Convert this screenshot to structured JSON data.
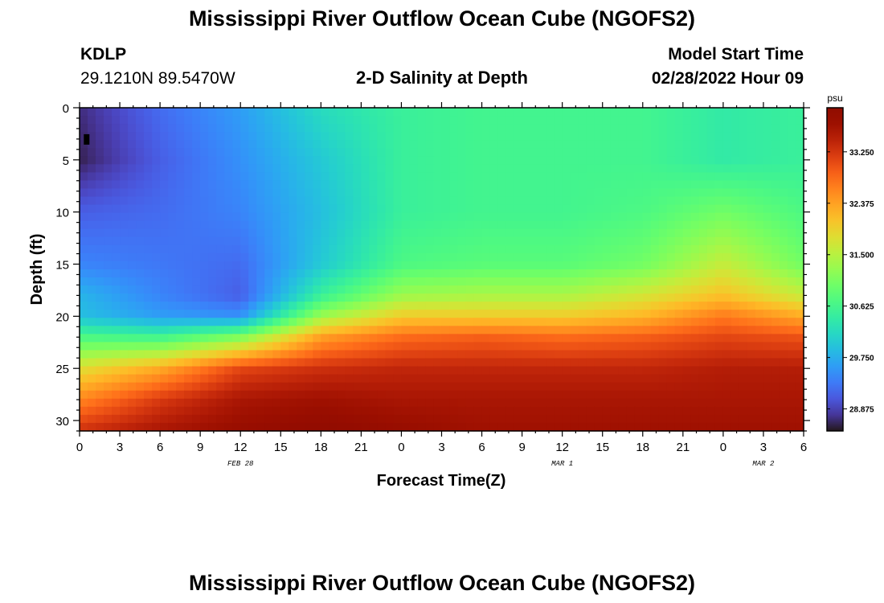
{
  "page": {
    "title": "Mississippi River Outflow Ocean Cube (NGOFS2)",
    "footer_title": "Mississippi River Outflow Ocean Cube (NGOFS2)",
    "station": "KDLP",
    "coordinates": "29.1210N  89.5470W",
    "plot_title": "2-D Salinity at Depth",
    "model_start_label": "Model Start Time",
    "model_start_value": "02/28/2022 Hour 09"
  },
  "chart_data": {
    "type": "heatmap",
    "title": "2-D Salinity at Depth",
    "xlabel": "Forecast Time(Z)",
    "ylabel": "Depth (ft)",
    "x_tick_labels": [
      "0",
      "3",
      "6",
      "9",
      "12",
      "15",
      "18",
      "21",
      "0",
      "3",
      "6",
      "9",
      "12",
      "15",
      "18",
      "21",
      "0",
      "3",
      "6"
    ],
    "x_hours": [
      0,
      3,
      6,
      9,
      12,
      15,
      18,
      21,
      24,
      27,
      30,
      33,
      36,
      39,
      42,
      45,
      48,
      51,
      54
    ],
    "x_range_hours": [
      0,
      54
    ],
    "date_labels": [
      {
        "label": "FEB 28",
        "hour": 12
      },
      {
        "label": "MAR 1",
        "hour": 36
      },
      {
        "label": "MAR 2",
        "hour": 51
      }
    ],
    "y_ticks": [
      0,
      5,
      10,
      15,
      20,
      25,
      30
    ],
    "y_range": [
      0,
      31
    ],
    "y_inverted": true,
    "colorbar": {
      "units": "psu",
      "ticks": [
        33.25,
        32.375,
        31.5,
        30.625,
        29.75,
        28.875
      ],
      "tick_labels": [
        "33.250",
        "32.375",
        "31.500",
        "30.625",
        "29.750",
        "28.875"
      ],
      "range": [
        28.5,
        34.0
      ],
      "colormap": "turbo"
    },
    "salinity_grid": {
      "times": [
        0,
        6,
        12,
        18,
        24,
        30,
        36,
        42,
        48,
        54
      ],
      "depths": [
        0,
        5,
        10,
        15,
        18,
        20,
        22,
        25,
        28,
        31
      ],
      "values": [
        [
          28.7,
          29.2,
          29.6,
          30.2,
          30.5,
          30.6,
          30.6,
          30.6,
          30.4,
          30.5
        ],
        [
          28.6,
          29.1,
          29.5,
          30.0,
          30.5,
          30.6,
          30.6,
          30.6,
          30.4,
          30.5
        ],
        [
          29.1,
          29.2,
          29.4,
          29.9,
          30.5,
          30.6,
          30.6,
          30.7,
          31.0,
          30.7
        ],
        [
          29.4,
          29.3,
          29.2,
          30.0,
          30.7,
          30.8,
          30.8,
          31.0,
          31.6,
          31.0
        ],
        [
          29.8,
          29.4,
          29.1,
          30.5,
          31.3,
          31.4,
          31.4,
          31.7,
          32.1,
          31.6
        ],
        [
          29.9,
          29.6,
          29.5,
          31.3,
          32.0,
          32.0,
          32.0,
          32.2,
          32.7,
          32.3
        ],
        [
          30.7,
          30.6,
          31.1,
          32.4,
          32.8,
          32.9,
          32.8,
          32.9,
          33.1,
          33.0
        ],
        [
          31.8,
          32.3,
          33.1,
          33.3,
          33.4,
          33.4,
          33.4,
          33.4,
          33.5,
          33.5
        ],
        [
          32.6,
          33.2,
          33.6,
          33.7,
          33.6,
          33.6,
          33.6,
          33.6,
          33.6,
          33.6
        ],
        [
          33.3,
          33.6,
          33.8,
          33.9,
          33.8,
          33.7,
          33.7,
          33.7,
          33.7,
          33.7
        ]
      ]
    },
    "marker": {
      "hour": 0.5,
      "depth": 3.0
    }
  }
}
